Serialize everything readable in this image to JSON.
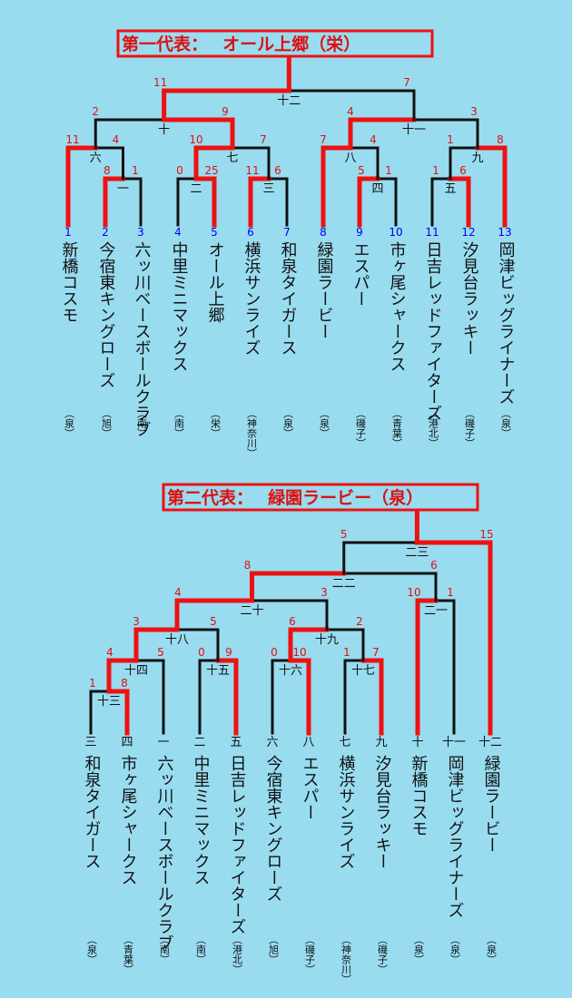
{
  "colors": {
    "background": "#99dcf0",
    "winner_line": "#ee1111",
    "line": "#111111",
    "score": "#dd1111",
    "seed_number": "#0000ee"
  },
  "bracket1": {
    "title": "第一代表：　 オール上郷（栄）",
    "teams": [
      {
        "seed": "1",
        "name": "新橋コスモ",
        "area": "（泉）"
      },
      {
        "seed": "2",
        "name": "今宿東キングローズ",
        "area": "（旭）"
      },
      {
        "seed": "3",
        "name": "六ッ川ベースボールクラブ",
        "area": "（南）"
      },
      {
        "seed": "4",
        "name": "中里ミニマックス",
        "area": "（南）"
      },
      {
        "seed": "5",
        "name": "オール上郷",
        "area": "（栄）"
      },
      {
        "seed": "6",
        "name": "横浜サンライズ",
        "area": "（神奈川）"
      },
      {
        "seed": "7",
        "name": "和泉タイガース",
        "area": "（泉）"
      },
      {
        "seed": "8",
        "name": "緑園ラービー",
        "area": "（泉）"
      },
      {
        "seed": "9",
        "name": "エスパー",
        "area": "（磯子）"
      },
      {
        "seed": "10",
        "name": "市ヶ尾シャークス",
        "area": "（青葉）"
      },
      {
        "seed": "11",
        "name": "日吉レッドファイターズ",
        "area": "（港北）"
      },
      {
        "seed": "12",
        "name": "汐見台ラッキー",
        "area": "（磯子）"
      },
      {
        "seed": "13",
        "name": "岡津ビッグライナーズ",
        "area": "（泉）"
      }
    ],
    "matches": [
      {
        "label": "一",
        "top": "8",
        "bottom": "1"
      },
      {
        "label": "二",
        "top": "0",
        "bottom": "25"
      },
      {
        "label": "三",
        "top": "11",
        "bottom": "6"
      },
      {
        "label": "四",
        "top": "5",
        "bottom": "1"
      },
      {
        "label": "五",
        "top": "1",
        "bottom": "6"
      },
      {
        "label": "六",
        "top": "11",
        "bottom": "4"
      },
      {
        "label": "七",
        "top": "10",
        "bottom": "7"
      },
      {
        "label": "八",
        "top": "7",
        "bottom": "4"
      },
      {
        "label": "九",
        "top": "1",
        "bottom": "8"
      },
      {
        "label": "十",
        "top": "2",
        "bottom": "9"
      },
      {
        "label": "十一",
        "top": "4",
        "bottom": "3"
      },
      {
        "label": "十二",
        "top": "11",
        "bottom": "7"
      }
    ]
  },
  "bracket2": {
    "title": "第二代表：　 緑園ラービー（泉）",
    "teams": [
      {
        "seed": "三",
        "name": "和泉タイガース",
        "area": "（泉）"
      },
      {
        "seed": "四",
        "name": "市ヶ尾シャークス",
        "area": "（青葉）"
      },
      {
        "seed": "一",
        "name": "六ッ川ベースボールクラブ",
        "area": "（南）"
      },
      {
        "seed": "二",
        "name": "中里ミニマックス",
        "area": "（南）"
      },
      {
        "seed": "五",
        "name": "日吉レッドファイターズ",
        "area": "（港北）"
      },
      {
        "seed": "六",
        "name": "今宿東キングローズ",
        "area": "（旭）"
      },
      {
        "seed": "八",
        "name": "エスパー",
        "area": "（磯子）"
      },
      {
        "seed": "七",
        "name": "横浜サンライズ",
        "area": "（神奈川）"
      },
      {
        "seed": "九",
        "name": "汐見台ラッキー",
        "area": "（磯子）"
      },
      {
        "seed": "十",
        "name": "新橋コスモ",
        "area": "（泉）"
      },
      {
        "seed": "十一",
        "name": "岡津ビッグライナーズ",
        "area": "（泉）"
      },
      {
        "seed": "十二",
        "name": "緑園ラービー",
        "area": "（泉）"
      }
    ],
    "matches": [
      {
        "label": "十三",
        "top": "1",
        "bottom": "8"
      },
      {
        "label": "十四",
        "top": "4",
        "bottom": "5"
      },
      {
        "label": "十五",
        "top": "0",
        "bottom": "9"
      },
      {
        "label": "十六",
        "top": "0",
        "bottom": "10"
      },
      {
        "label": "十七",
        "top": "1",
        "bottom": "7"
      },
      {
        "label": "十八",
        "top": "3",
        "bottom": "5"
      },
      {
        "label": "十九",
        "top": "6",
        "bottom": "2"
      },
      {
        "label": "二十",
        "top": "4",
        "bottom": "3"
      },
      {
        "label": "二一",
        "top": "10",
        "bottom": "1"
      },
      {
        "label": "二二",
        "top": "8",
        "bottom": "6"
      },
      {
        "label": "二三",
        "top": "5",
        "bottom": "15"
      }
    ]
  }
}
